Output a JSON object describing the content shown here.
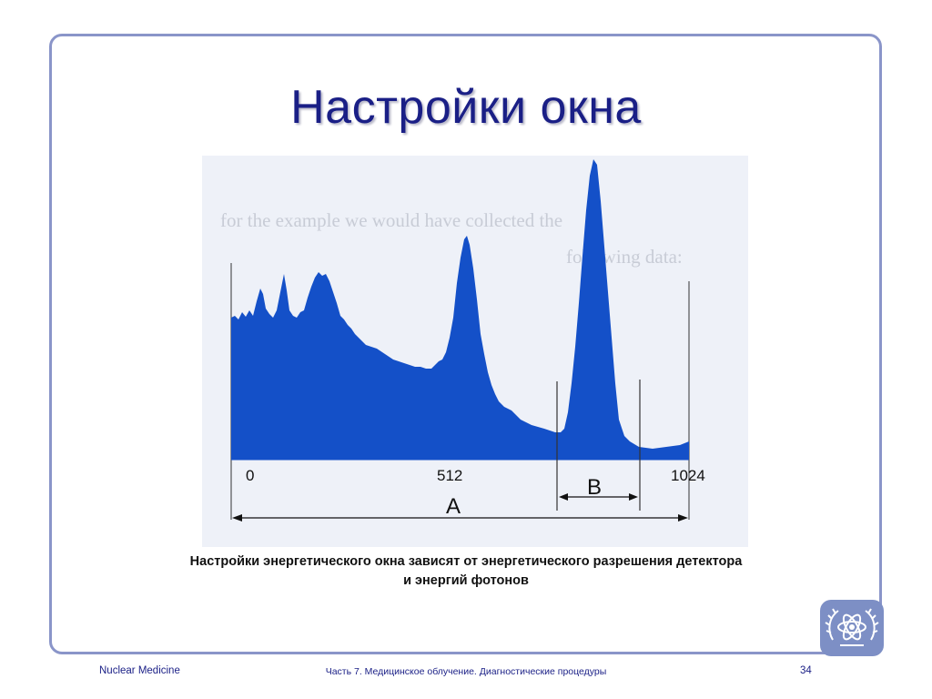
{
  "slide": {
    "title": "Настройки окна",
    "caption_line1": "Настройки энергетического окна зависят от энергетического разрешения детектора",
    "caption_line2": "и энергий фотонов"
  },
  "figure": {
    "tick_labels": [
      "0",
      "512",
      "1024"
    ],
    "window_labels": [
      "A",
      "B"
    ],
    "ghost_text_1": "for the example we would have collected the",
    "ghost_text_2": "following data:"
  },
  "footer": {
    "left": "Nuclear Medicine",
    "center": "Часть 7. Медицинское облучение. Диагностические процедуры",
    "page": "34"
  },
  "colors": {
    "title": "#1a1f86",
    "spectrum_fill": "#1450c8",
    "frame": "#8a95c9",
    "logo_bg": "#7d8fc5"
  },
  "icons": {
    "logo": "iaea-atom-laurel-icon"
  }
}
